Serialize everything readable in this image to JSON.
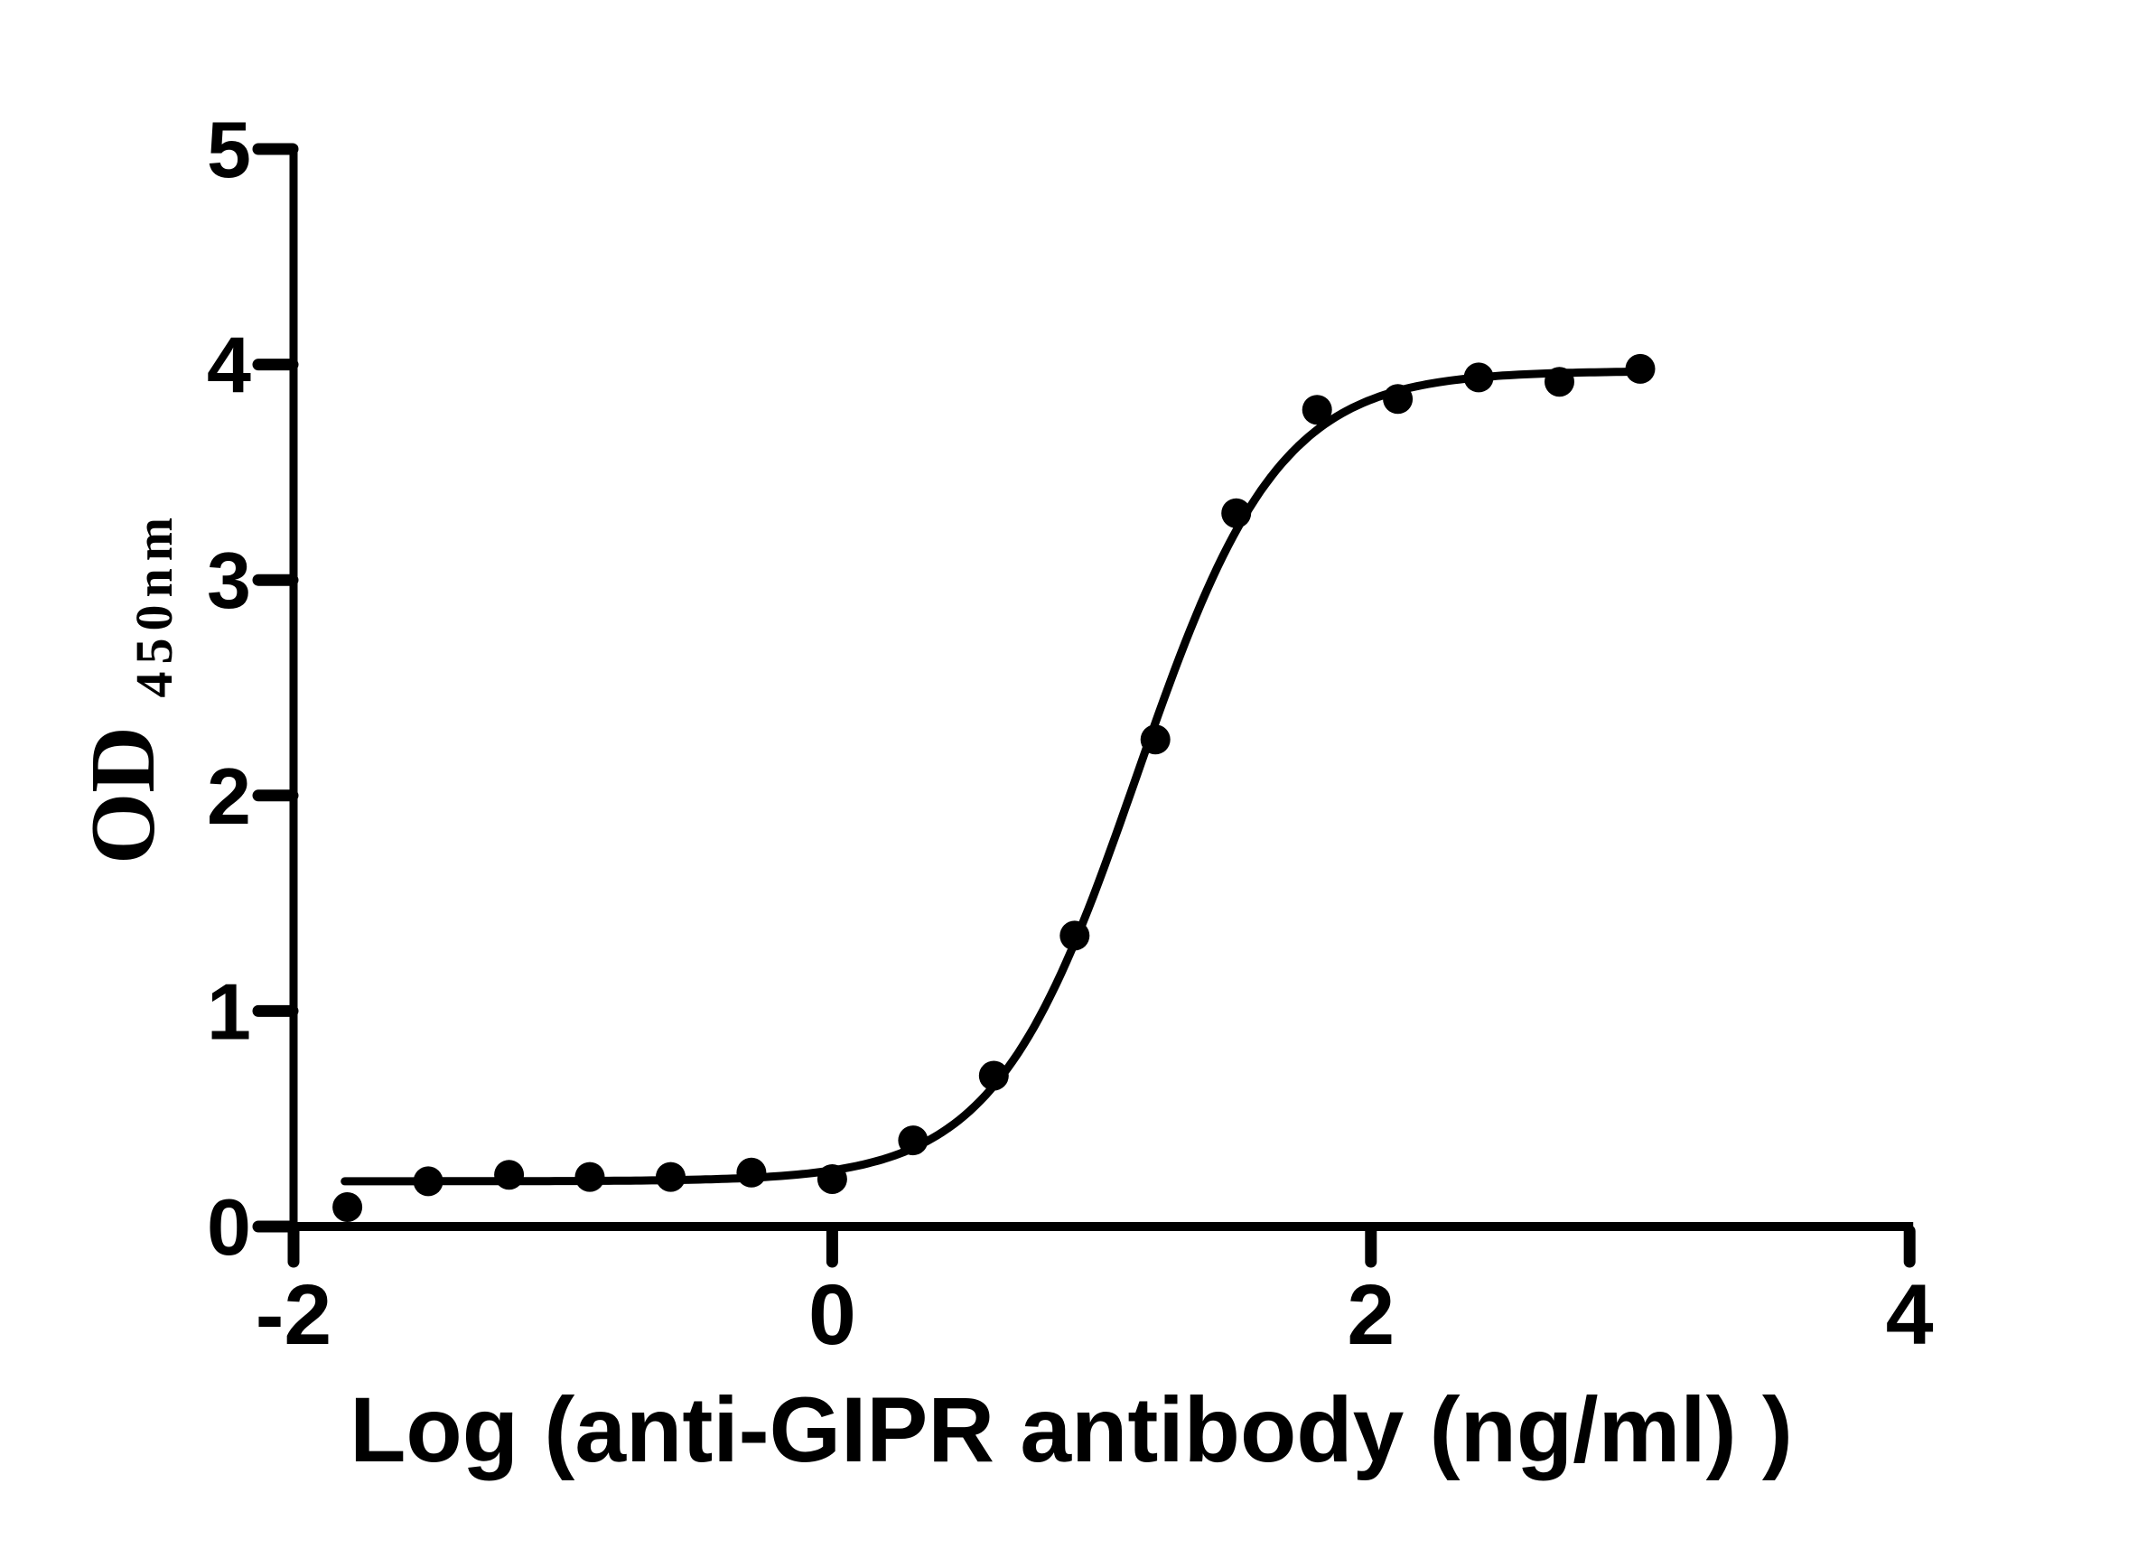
{
  "figure": {
    "background_color": "#ffffff",
    "ink_color": "#000000"
  },
  "chart_data": {
    "type": "scatter",
    "title": "",
    "xlabel": "Log (anti-GIPR antibody (ng/ml) )",
    "ylabel": "OD",
    "ylabel_subscript": "450nm",
    "x": [
      -1.8,
      -1.5,
      -1.2,
      -0.9,
      -0.6,
      -0.3,
      0.0,
      0.3,
      0.6,
      0.9,
      1.2,
      1.5,
      1.8,
      2.1,
      2.4,
      2.7,
      3.0
    ],
    "y": [
      0.09,
      0.21,
      0.24,
      0.23,
      0.23,
      0.25,
      0.22,
      0.4,
      0.7,
      1.35,
      2.26,
      3.31,
      3.79,
      3.84,
      3.94,
      3.92,
      3.98
    ],
    "xlim": [
      -2,
      4
    ],
    "ylim": [
      0,
      5
    ],
    "x_ticks": [
      -2,
      0,
      2,
      4
    ],
    "y_ticks": [
      0,
      1,
      2,
      3,
      4,
      5
    ],
    "grid": false,
    "legend": "none",
    "marker": {
      "shape": "circle",
      "color": "#000000"
    },
    "fit_curve": {
      "model": "4PL-sigmoid",
      "bottom": 0.21,
      "top": 3.97,
      "logEC50": 1.13,
      "hillslope": 1.65,
      "x_start": -1.81,
      "x_end": 3.0
    }
  }
}
